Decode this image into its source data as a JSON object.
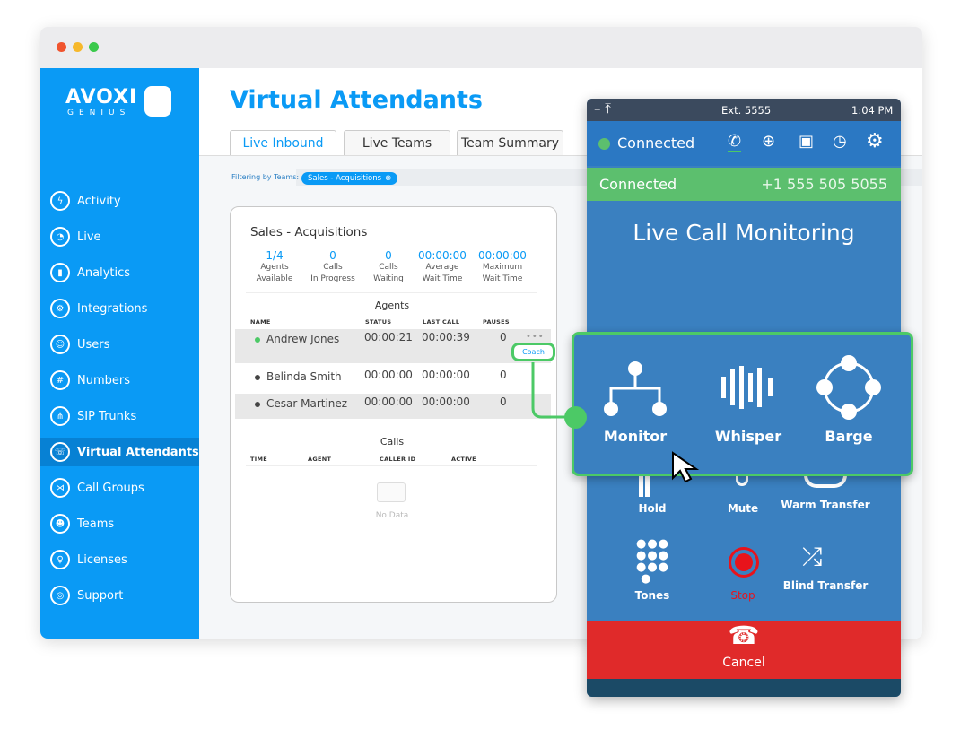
{
  "window": {
    "traffic_lights": [
      "#f0542e",
      "#f6b82b",
      "#3ac94b"
    ]
  },
  "sidebar": {
    "logo": {
      "brand": "AVOXI",
      "sub": "GENIUS"
    },
    "items": [
      {
        "label": "Activity",
        "icon": "lightning-icon"
      },
      {
        "label": "Live",
        "icon": "gauge-icon"
      },
      {
        "label": "Analytics",
        "icon": "bar-chart-icon"
      },
      {
        "label": "Integrations",
        "icon": "gears-icon"
      },
      {
        "label": "Users",
        "icon": "users-icon"
      },
      {
        "label": "Numbers",
        "icon": "hash-icon"
      },
      {
        "label": "SIP Trunks",
        "icon": "network-icon"
      },
      {
        "label": "Virtual Attendants",
        "icon": "attendant-icon",
        "active": true
      },
      {
        "label": "Call Groups",
        "icon": "share-icon"
      },
      {
        "label": "Teams",
        "icon": "team-icon"
      },
      {
        "label": "Licenses",
        "icon": "key-icon"
      },
      {
        "label": "Support",
        "icon": "lifebuoy-icon"
      }
    ]
  },
  "main": {
    "title": "Virtual Attendants",
    "tabs": [
      {
        "label": "Live Inbound",
        "active": true
      },
      {
        "label": "Live Teams"
      },
      {
        "label": "Team Summary"
      }
    ],
    "filter_label": "Filtering by Teams:",
    "filter_chip": "Sales - Acquisitions",
    "card": {
      "title": "Sales - Acquisitions",
      "stats": [
        {
          "value": "1/4",
          "label1": "Agents",
          "label2": "Available"
        },
        {
          "value": "0",
          "label1": "Calls",
          "label2": "In Progress"
        },
        {
          "value": "0",
          "label1": "Calls",
          "label2": "Waiting"
        },
        {
          "value": "00:00:00",
          "label1": "Average",
          "label2": "Wait Time"
        },
        {
          "value": "00:00:00",
          "label1": "Maximum",
          "label2": "Wait Time"
        }
      ],
      "agents_heading": "Agents",
      "agent_columns": [
        "NAME",
        "STATUS",
        "LAST CALL",
        "PAUSES"
      ],
      "agents": [
        {
          "name": "Andrew Jones",
          "status": "00:00:21",
          "last_call": "00:00:39",
          "pauses": "0",
          "online": true
        },
        {
          "name": "Belinda Smith",
          "status": "00:00:00",
          "last_call": "00:00:00",
          "pauses": "0",
          "online": false
        },
        {
          "name": "Cesar Martinez",
          "status": "00:00:00",
          "last_call": "00:00:00",
          "pauses": "0",
          "online": false
        }
      ],
      "coach_label": "Coach",
      "calls_heading": "Calls",
      "call_columns": [
        "TIME",
        "AGENT",
        "CALLER ID",
        "ACTIVE"
      ],
      "empty_text": "No Data"
    }
  },
  "phone": {
    "extension": "Ext. 5555",
    "time": "1:04 PM",
    "status": "Connected",
    "connected_label": "Connected",
    "number": "+1 555 505 5055",
    "heading": "Live Call Monitoring",
    "monitor_options": [
      "Monitor",
      "Whisper",
      "Barge"
    ],
    "controls": [
      {
        "label": "Hold"
      },
      {
        "label": "Mute"
      },
      {
        "label": "Warm Transfer"
      },
      {
        "label": "Tones"
      },
      {
        "label": "Stop",
        "color": "#e8131b"
      },
      {
        "label": "Blind Transfer"
      }
    ],
    "cancel": "Cancel",
    "colors": {
      "accent": "#4cc966",
      "panel": "#3a80c0",
      "cancel": "#e02a2a"
    }
  }
}
